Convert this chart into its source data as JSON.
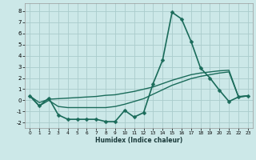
{
  "xlabel": "Humidex (Indice chaleur)",
  "xlim": [
    -0.5,
    23.5
  ],
  "ylim": [
    -2.5,
    8.7
  ],
  "yticks": [
    -2,
    -1,
    0,
    1,
    2,
    3,
    4,
    5,
    6,
    7,
    8
  ],
  "xticks": [
    0,
    1,
    2,
    3,
    4,
    5,
    6,
    7,
    8,
    9,
    10,
    11,
    12,
    13,
    14,
    15,
    16,
    17,
    18,
    19,
    20,
    21,
    22,
    23
  ],
  "bg_color": "#cce8e8",
  "grid_color": "#aacccc",
  "line_color": "#1a6b5a",
  "main_series": {
    "x": [
      0,
      1,
      2,
      3,
      4,
      5,
      6,
      7,
      8,
      9,
      10,
      11,
      12,
      13,
      14,
      15,
      16,
      17,
      18,
      19,
      20,
      21,
      22,
      23
    ],
    "y": [
      0.4,
      -0.5,
      0.2,
      -1.3,
      -1.7,
      -1.7,
      -1.7,
      -1.7,
      -1.9,
      -1.9,
      -0.9,
      -1.5,
      -1.1,
      1.5,
      3.6,
      7.9,
      7.3,
      5.3,
      2.9,
      2.0,
      0.9,
      -0.1,
      0.3,
      0.4
    ]
  },
  "upper_line": {
    "x": [
      0,
      1,
      2,
      3,
      4,
      5,
      6,
      7,
      8,
      9,
      10,
      11,
      12,
      13,
      14,
      15,
      16,
      17,
      18,
      19,
      20,
      21,
      22,
      23
    ],
    "y": [
      0.4,
      -0.2,
      0.1,
      0.15,
      0.2,
      0.25,
      0.3,
      0.35,
      0.45,
      0.5,
      0.65,
      0.8,
      1.0,
      1.2,
      1.5,
      1.8,
      2.05,
      2.3,
      2.45,
      2.55,
      2.65,
      2.7,
      0.35,
      0.4
    ]
  },
  "lower_line": {
    "x": [
      0,
      1,
      2,
      3,
      4,
      5,
      6,
      7,
      8,
      9,
      10,
      11,
      12,
      13,
      14,
      15,
      16,
      17,
      18,
      19,
      20,
      21,
      22,
      23
    ],
    "y": [
      0.4,
      -0.5,
      0.0,
      -0.55,
      -0.65,
      -0.65,
      -0.65,
      -0.65,
      -0.65,
      -0.55,
      -0.35,
      -0.1,
      0.15,
      0.55,
      0.95,
      1.35,
      1.65,
      1.95,
      2.15,
      2.3,
      2.45,
      2.55,
      0.3,
      0.4
    ]
  },
  "marker_style": "D",
  "markersize": 2.5,
  "linewidth_main": 1.2,
  "linewidth_reg": 1.0
}
